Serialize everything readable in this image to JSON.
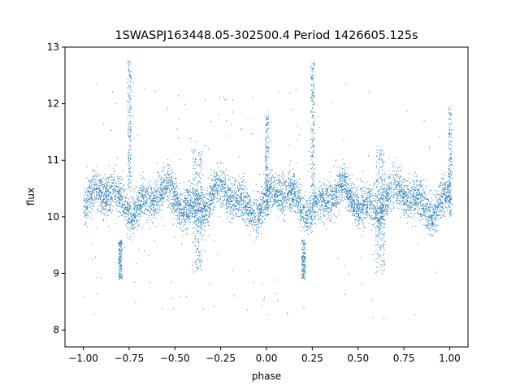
{
  "chart_data": {
    "type": "scatter",
    "title": "1SWASPJ163448.05-302500.4 Period 1426605.125s",
    "xlabel": "phase",
    "ylabel": "flux",
    "xlim": [
      -1.1,
      1.1
    ],
    "ylim": [
      7.7,
      13.0
    ],
    "x_ticks": [
      -1.0,
      -0.75,
      -0.5,
      -0.25,
      0.0,
      0.25,
      0.5,
      0.75,
      1.0
    ],
    "x_tick_labels": [
      "−1.00",
      "−0.75",
      "−0.50",
      "−0.25",
      "0.00",
      "0.25",
      "0.50",
      "0.75",
      "1.00"
    ],
    "y_ticks": [
      8,
      9,
      10,
      11,
      12,
      13
    ],
    "y_tick_labels": [
      "8",
      "9",
      "10",
      "11",
      "12",
      "13"
    ],
    "grid": false,
    "marker_color": "#1f77b4",
    "series": [
      {
        "phase_range": [
          -1.0,
          1.0
        ],
        "baseline_flux": 10.3,
        "typical_spread": [
          9.8,
          10.9
        ],
        "features": [
          {
            "phase": -0.75,
            "flux_range": [
              10.5,
              12.8
            ],
            "kind": "spike"
          },
          {
            "phase": 0.25,
            "flux_range": [
              10.5,
              12.8
            ],
            "kind": "spike"
          },
          {
            "phase": -0.8,
            "flux_range": [
              8.9,
              9.6
            ],
            "kind": "dip"
          },
          {
            "phase": 0.2,
            "flux_range": [
              8.9,
              9.6
            ],
            "kind": "dip"
          },
          {
            "phase": -0.38,
            "flux_range": [
              9.0,
              11.2
            ],
            "kind": "scatter"
          },
          {
            "phase": 0.62,
            "flux_range": [
              9.0,
              11.2
            ],
            "kind": "scatter"
          },
          {
            "phase": 0.0,
            "flux_range": [
              10.0,
              11.8
            ],
            "kind": "spike"
          },
          {
            "phase": 1.0,
            "flux_range": [
              10.0,
              12.0
            ],
            "kind": "spike"
          }
        ]
      }
    ]
  }
}
